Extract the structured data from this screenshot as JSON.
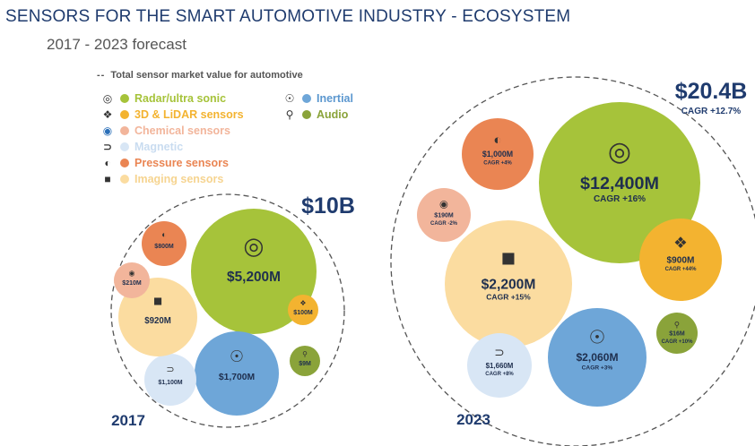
{
  "title": "SENSORS FOR THE SMART AUTOMOTIVE INDUSTRY - ECOSYSTEM",
  "subtitle": "2017 - 2023 forecast",
  "legend_title": "Total sensor market value for automotive",
  "colors": {
    "radar": "#a6c33a",
    "lidar": "#f3b330",
    "chemical": "#f2b59b",
    "magnetic": "#d8e6f5",
    "pressure": "#ea8553",
    "imaging": "#fbdca0",
    "inertial": "#6ea6d8",
    "audio": "#8aa33a",
    "navy": "#1f3b6e"
  },
  "legend": [
    {
      "label": "Radar/ultra sonic",
      "color": "#a6c33a",
      "icon": "radar-icon"
    },
    {
      "label": "3D & LiDAR sensors",
      "color": "#f3b330",
      "icon": "lidar-icon"
    },
    {
      "label": "Chemical sensors",
      "color": "#f2b59b",
      "icon": "chemical-icon"
    },
    {
      "label": "Magnetic",
      "color": "#d8e6f5",
      "icon": "magnet-icon"
    },
    {
      "label": "Pressure sensors",
      "color": "#ea8553",
      "icon": "pressure-gauge-icon"
    },
    {
      "label": "Imaging sensors",
      "color": "#fbdca0",
      "icon": "camera-icon"
    },
    {
      "label": "Inertial",
      "color": "#6ea6d8",
      "icon": "gyroscope-icon"
    },
    {
      "label": "Audio",
      "color": "#8aa33a",
      "icon": "microphone-icon"
    }
  ],
  "chart_data": [
    {
      "type": "bubble",
      "year": "2017",
      "total": "$10B",
      "series": [
        {
          "name": "Radar/ultra sonic",
          "value": 5200,
          "label": "$5,200M"
        },
        {
          "name": "Inertial",
          "value": 1700,
          "label": "$1,700M"
        },
        {
          "name": "Magnetic",
          "value": 1100,
          "label": "$1,100M"
        },
        {
          "name": "Imaging sensors",
          "value": 920,
          "label": "$920M"
        },
        {
          "name": "Pressure sensors",
          "value": 800,
          "label": "$800M"
        },
        {
          "name": "Chemical sensors",
          "value": 210,
          "label": "$210M"
        },
        {
          "name": "3D & LiDAR sensors",
          "value": 100,
          "label": "$100M"
        },
        {
          "name": "Audio",
          "value": 9,
          "label": "$9M"
        }
      ]
    },
    {
      "type": "bubble",
      "year": "2023",
      "total": "$20.4B",
      "cagr": "CAGR +12.7%",
      "series": [
        {
          "name": "Radar/ultra sonic",
          "value": 12400,
          "label": "$12,400M",
          "cagr": "CAGR +16%"
        },
        {
          "name": "Imaging sensors",
          "value": 2200,
          "label": "$2,200M",
          "cagr": "CAGR +15%"
        },
        {
          "name": "Inertial",
          "value": 2060,
          "label": "$2,060M",
          "cagr": "CAGR +3%"
        },
        {
          "name": "Magnetic",
          "value": 1660,
          "label": "$1,660M",
          "cagr": "CAGR +8%"
        },
        {
          "name": "Pressure sensors",
          "value": 1000,
          "label": "$1,000M",
          "cagr": "CAGR +4%"
        },
        {
          "name": "3D & LiDAR sensors",
          "value": 900,
          "label": "$900M",
          "cagr": "CAGR +44%"
        },
        {
          "name": "Chemical sensors",
          "value": 190,
          "label": "$190M",
          "cagr": "CAGR -2%"
        },
        {
          "name": "Audio",
          "value": 16,
          "label": "$16M",
          "cagr": "CAGR +10%"
        }
      ]
    }
  ]
}
